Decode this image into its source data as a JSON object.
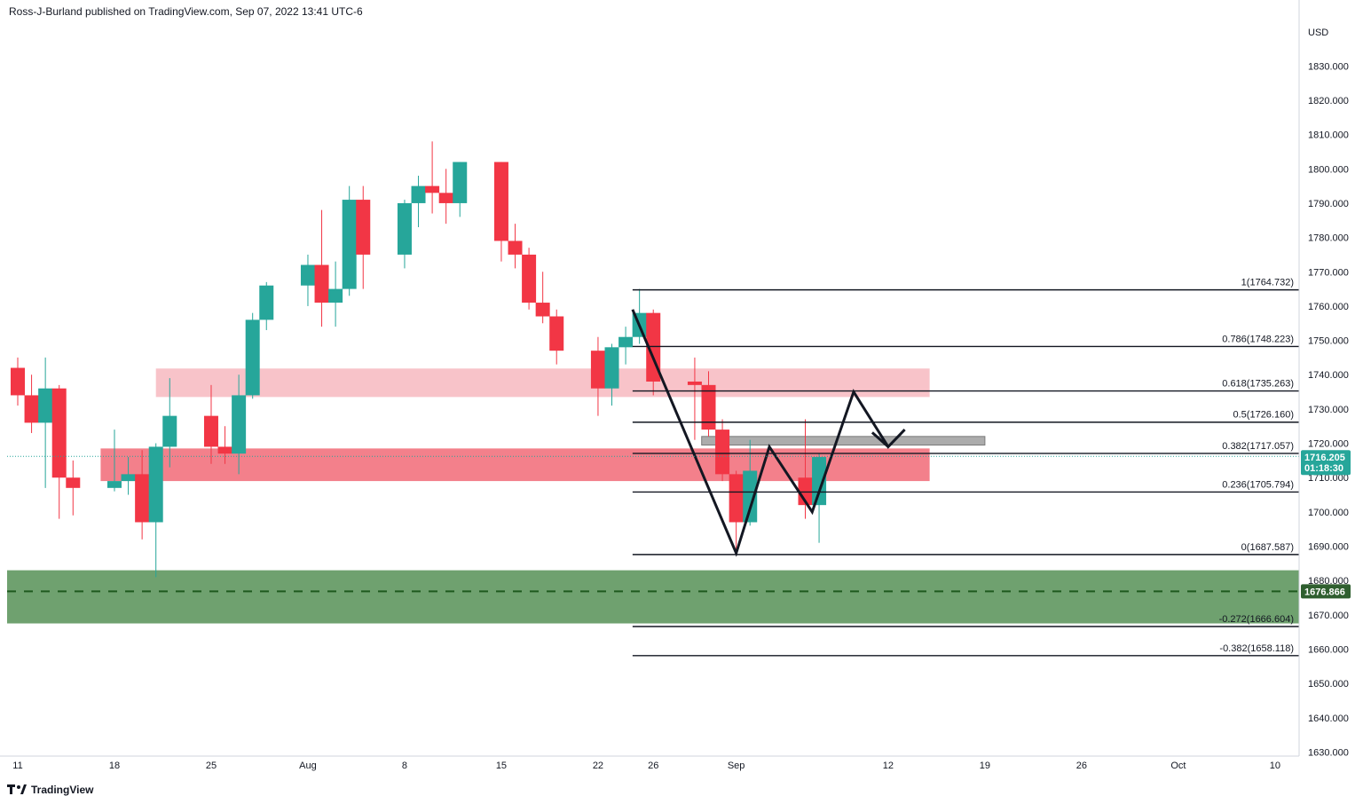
{
  "header": {
    "text": "Ross-J-Burland published on TradingView.com, Sep 07, 2022 13:41 UTC-6"
  },
  "footer": {
    "brand": "TradingView",
    "logo_icon": "tradingview-logo-icon"
  },
  "colors": {
    "up": "#26a69a",
    "down": "#f23645",
    "upper_zone": "#f6b4bb",
    "middle_zone": "#f0606e",
    "support_zone": "#4b8a4b",
    "grey_zone": "#9e9e9e",
    "price_tag": "#26a69a",
    "support_tag": "#2f5f2f"
  },
  "chart_data": {
    "type": "candlestick",
    "currency": "USD",
    "y_axis": {
      "ylim": [
        1628,
        1842
      ],
      "ticks": [
        1630,
        1640,
        1650,
        1660,
        1670,
        1680,
        1690,
        1700,
        1710,
        1720,
        1730,
        1740,
        1750,
        1760,
        1770,
        1780,
        1790,
        1800,
        1810,
        1820,
        1830
      ],
      "tick_labels": [
        "1630.000",
        "1640.000",
        "1650.000",
        "1660.000",
        "1670.000",
        "1680.000",
        "1690.000",
        "1700.000",
        "1710.000",
        "1720.000",
        "1730.000",
        "1740.000",
        "1750.000",
        "1760.000",
        "1770.000",
        "1780.000",
        "1790.000",
        "1800.000",
        "1810.000",
        "1820.000",
        "1830.000"
      ]
    },
    "x_axis": {
      "labels": [
        {
          "text": "11",
          "day": 0
        },
        {
          "text": "18",
          "day": 7
        },
        {
          "text": "25",
          "day": 14
        },
        {
          "text": "Aug",
          "day": 21
        },
        {
          "text": "8",
          "day": 28
        },
        {
          "text": "15",
          "day": 35
        },
        {
          "text": "22",
          "day": 42
        },
        {
          "text": "26",
          "day": 46
        },
        {
          "text": "Sep",
          "day": 52
        },
        {
          "text": "12",
          "day": 63
        },
        {
          "text": "19",
          "day": 70
        },
        {
          "text": "26",
          "day": 77
        },
        {
          "text": "Oct",
          "day": 84
        },
        {
          "text": "10",
          "day": 91
        }
      ]
    },
    "candles": [
      {
        "date": "2022-07-11",
        "o": 1742,
        "h": 1745,
        "l": 1731,
        "c": 1734
      },
      {
        "date": "2022-07-12",
        "o": 1734,
        "h": 1740,
        "l": 1723,
        "c": 1726
      },
      {
        "date": "2022-07-13",
        "o": 1726,
        "h": 1745,
        "l": 1707,
        "c": 1736
      },
      {
        "date": "2022-07-14",
        "o": 1736,
        "h": 1737,
        "l": 1698,
        "c": 1710
      },
      {
        "date": "2022-07-15",
        "o": 1710,
        "h": 1715,
        "l": 1699,
        "c": 1707
      },
      {
        "date": "2022-07-18",
        "o": 1707,
        "h": 1724,
        "l": 1706,
        "c": 1709
      },
      {
        "date": "2022-07-19",
        "o": 1709,
        "h": 1716,
        "l": 1705,
        "c": 1711
      },
      {
        "date": "2022-07-20",
        "o": 1711,
        "h": 1718,
        "l": 1692,
        "c": 1697
      },
      {
        "date": "2022-07-21",
        "o": 1697,
        "h": 1720,
        "l": 1681,
        "c": 1719
      },
      {
        "date": "2022-07-22",
        "o": 1719,
        "h": 1739,
        "l": 1713,
        "c": 1728
      },
      {
        "date": "2022-07-25",
        "o": 1728,
        "h": 1737,
        "l": 1714,
        "c": 1719
      },
      {
        "date": "2022-07-26",
        "o": 1719,
        "h": 1725,
        "l": 1714,
        "c": 1717
      },
      {
        "date": "2022-07-27",
        "o": 1717,
        "h": 1740,
        "l": 1711,
        "c": 1734
      },
      {
        "date": "2022-07-28",
        "o": 1734,
        "h": 1758,
        "l": 1733,
        "c": 1756
      },
      {
        "date": "2022-07-29",
        "o": 1756,
        "h": 1767,
        "l": 1753,
        "c": 1766
      },
      {
        "date": "2022-08-01",
        "o": 1766,
        "h": 1775,
        "l": 1760,
        "c": 1772
      },
      {
        "date": "2022-08-02",
        "o": 1772,
        "h": 1788,
        "l": 1754,
        "c": 1761
      },
      {
        "date": "2022-08-03",
        "o": 1761,
        "h": 1773,
        "l": 1754,
        "c": 1765
      },
      {
        "date": "2022-08-04",
        "o": 1765,
        "h": 1795,
        "l": 1763,
        "c": 1791
      },
      {
        "date": "2022-08-05",
        "o": 1791,
        "h": 1795,
        "l": 1765,
        "c": 1775
      },
      {
        "date": "2022-08-08",
        "o": 1775,
        "h": 1791,
        "l": 1771,
        "c": 1790
      },
      {
        "date": "2022-08-09",
        "o": 1790,
        "h": 1798,
        "l": 1783,
        "c": 1795
      },
      {
        "date": "2022-08-10",
        "o": 1795,
        "h": 1808,
        "l": 1787,
        "c": 1793
      },
      {
        "date": "2022-08-11",
        "o": 1793,
        "h": 1800,
        "l": 1784,
        "c": 1790
      },
      {
        "date": "2022-08-12",
        "o": 1790,
        "h": 1802,
        "l": 1786,
        "c": 1802
      },
      {
        "date": "2022-08-15",
        "o": 1802,
        "h": 1802,
        "l": 1773,
        "c": 1779
      },
      {
        "date": "2022-08-16",
        "o": 1779,
        "h": 1784,
        "l": 1771,
        "c": 1775
      },
      {
        "date": "2022-08-17",
        "o": 1775,
        "h": 1777,
        "l": 1759,
        "c": 1761
      },
      {
        "date": "2022-08-18",
        "o": 1761,
        "h": 1770,
        "l": 1755,
        "c": 1757
      },
      {
        "date": "2022-08-19",
        "o": 1757,
        "h": 1759,
        "l": 1743,
        "c": 1747
      },
      {
        "date": "2022-08-22",
        "o": 1747,
        "h": 1751,
        "l": 1728,
        "c": 1736
      },
      {
        "date": "2022-08-23",
        "o": 1736,
        "h": 1749,
        "l": 1731,
        "c": 1748
      },
      {
        "date": "2022-08-24",
        "o": 1748,
        "h": 1754,
        "l": 1743,
        "c": 1751
      },
      {
        "date": "2022-08-25",
        "o": 1751,
        "h": 1765,
        "l": 1749,
        "c": 1758
      },
      {
        "date": "2022-08-26",
        "o": 1758,
        "h": 1759,
        "l": 1734,
        "c": 1738
      },
      {
        "date": "2022-08-29",
        "o": 1738,
        "h": 1745,
        "l": 1721,
        "c": 1737
      },
      {
        "date": "2022-08-30",
        "o": 1737,
        "h": 1741,
        "l": 1722,
        "c": 1724
      },
      {
        "date": "2022-08-31",
        "o": 1724,
        "h": 1727,
        "l": 1709,
        "c": 1711
      },
      {
        "date": "2022-09-01",
        "o": 1711,
        "h": 1712,
        "l": 1688,
        "c": 1697
      },
      {
        "date": "2022-09-02",
        "o": 1697,
        "h": 1721,
        "l": 1696,
        "c": 1712
      },
      {
        "date": "2022-09-06",
        "o": 1710,
        "h": 1727,
        "l": 1698,
        "c": 1702
      },
      {
        "date": "2022-09-07",
        "o": 1702,
        "h": 1717,
        "l": 1691,
        "c": 1716
      }
    ],
    "fib_levels": [
      {
        "ratio": "1",
        "value": "1764.732",
        "label": "1(1764.732)"
      },
      {
        "ratio": "0.786",
        "value": "1748.223",
        "label": "0.786(1748.223)"
      },
      {
        "ratio": "0.618",
        "value": "1735.263",
        "label": "0.618(1735.263)"
      },
      {
        "ratio": "0.5",
        "value": "1726.160",
        "label": "0.5(1726.160)"
      },
      {
        "ratio": "0.382",
        "value": "1717.057",
        "label": "0.382(1717.057)"
      },
      {
        "ratio": "0.236",
        "value": "1705.794",
        "label": "0.236(1705.794)"
      },
      {
        "ratio": "0",
        "value": "1687.587",
        "label": "0(1687.587)"
      },
      {
        "ratio": "-0.272",
        "value": "1666.604",
        "label": "-0.272(1666.604)"
      },
      {
        "ratio": "-0.382",
        "value": "1658.118",
        "label": "-0.382(1658.118)"
      }
    ],
    "zones": [
      {
        "name": "upper-resistance-zone",
        "y_low": 1733.5,
        "y_high": 1741.8,
        "from_day": 10,
        "to_day": 66
      },
      {
        "name": "middle-supply-zone",
        "y_low": 1709,
        "y_high": 1718.5,
        "from_day": 6,
        "to_day": 66
      },
      {
        "name": "support-zone",
        "y_low": 1667.5,
        "y_high": 1683,
        "from_day": -1,
        "to_day": 99
      },
      {
        "name": "grey-target-zone",
        "y_low": 1719.5,
        "y_high": 1722,
        "from_day": 49.5,
        "to_day": 70
      }
    ],
    "support_level": {
      "value": 1676.866,
      "label": "1676.866"
    },
    "current_price": {
      "value": 1716.205,
      "label": "1716.205",
      "countdown": "01:18:30"
    },
    "projection_path": [
      {
        "day": 44.5,
        "price": 1759
      },
      {
        "day": 52,
        "price": 1688
      },
      {
        "day": 54.4,
        "price": 1719
      },
      {
        "day": 57.5,
        "price": 1700
      },
      {
        "day": 60.5,
        "price": 1735
      },
      {
        "day": 63,
        "price": 1719
      },
      {
        "day": 64.2,
        "price": 1724
      }
    ]
  }
}
